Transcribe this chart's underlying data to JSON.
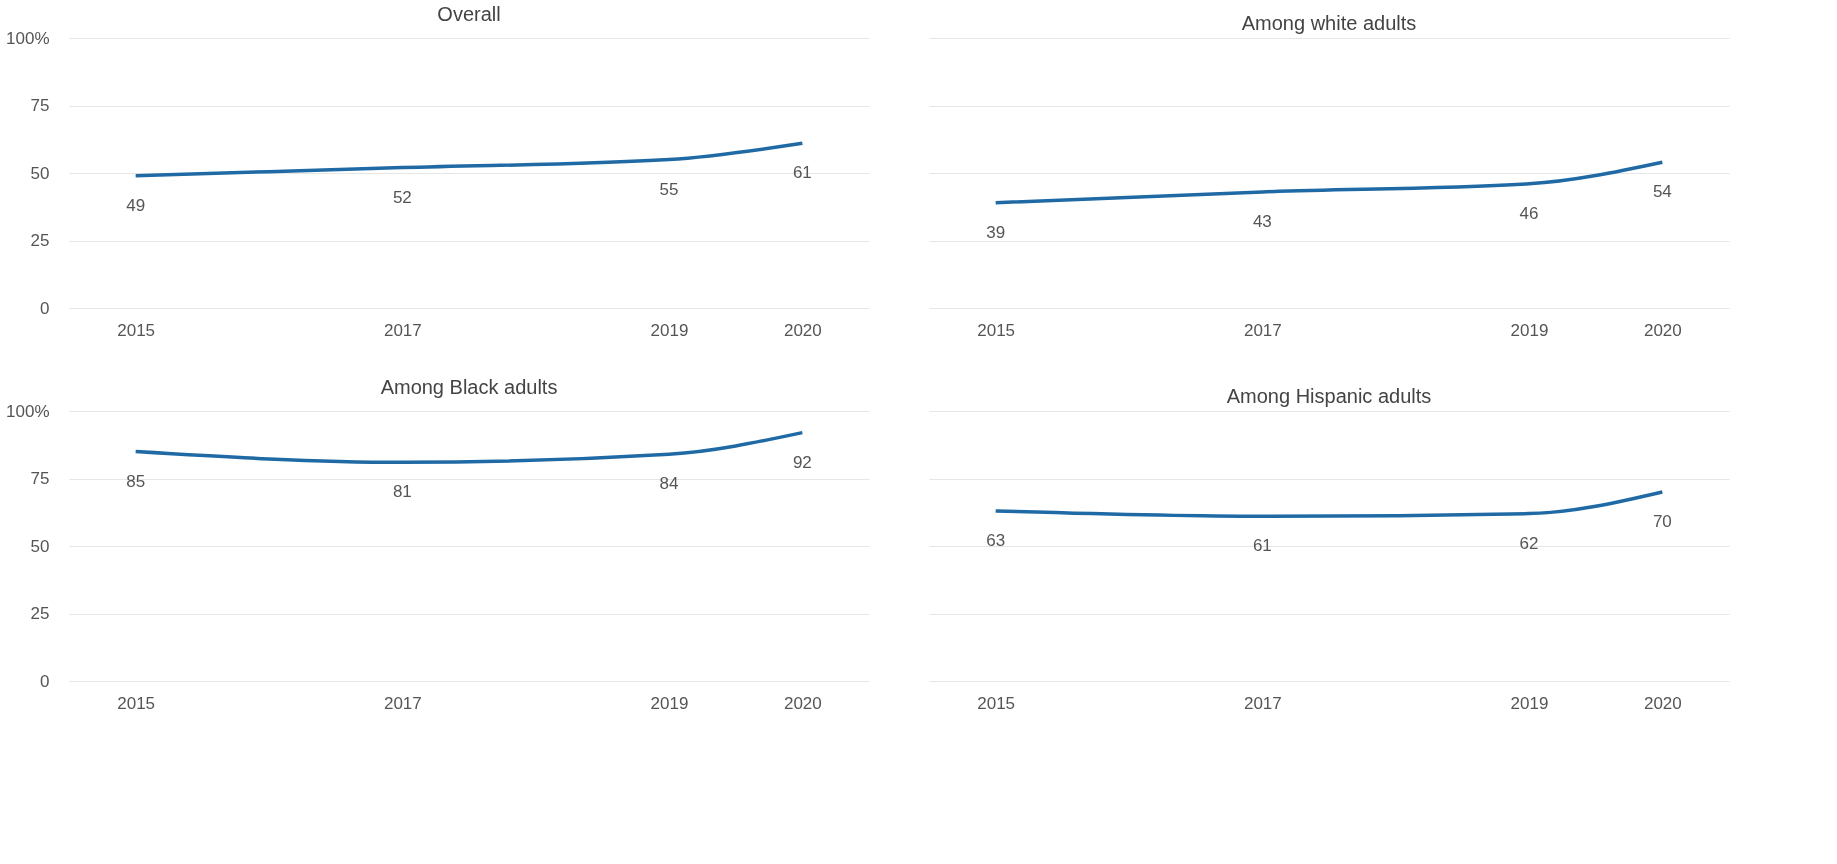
{
  "chart_data": [
    {
      "type": "line",
      "title": "Overall",
      "x": [
        2015,
        2017,
        2019,
        2020
      ],
      "values": [
        49,
        52,
        55,
        61
      ],
      "color": "#1f6aa5",
      "data_labels": true,
      "xlim": [
        2014.5,
        2020.5
      ],
      "xticks": [
        2015,
        2017,
        2019,
        2020
      ],
      "ylim": [
        0,
        100
      ],
      "yticks": [
        0,
        25,
        50,
        75,
        {
          "value": 100,
          "label": "100%"
        }
      ],
      "grid": "y"
    },
    {
      "type": "line",
      "title": "Among white adults",
      "x": [
        2015,
        2017,
        2019,
        2020
      ],
      "values": [
        39,
        43,
        46,
        54
      ],
      "color": "#1f6aa5",
      "data_labels": true,
      "xlim": [
        2014.5,
        2020.5
      ],
      "xticks": [
        2015,
        2017,
        2019,
        2020
      ],
      "ylim": [
        0,
        100
      ],
      "yticks": [
        0,
        25,
        50,
        75,
        100
      ],
      "grid": "y",
      "tick_labels": "x"
    },
    {
      "type": "line",
      "title": "Among Black adults",
      "x": [
        2015,
        2017,
        2019,
        2020
      ],
      "values": [
        85,
        81,
        84,
        92
      ],
      "color": "#1f6aa5",
      "data_labels": true,
      "xlim": [
        2014.5,
        2020.5
      ],
      "xticks": [
        2015,
        2017,
        2019,
        2020
      ],
      "ylim": [
        0,
        100
      ],
      "yticks": [
        0,
        25,
        50,
        75,
        {
          "value": 100,
          "label": "100%"
        }
      ],
      "grid": "y"
    },
    {
      "type": "line",
      "title": "Among Hispanic adults",
      "x": [
        2015,
        2017,
        2019,
        2020
      ],
      "values": [
        63,
        61,
        62,
        70
      ],
      "color": "#1f6aa5",
      "data_labels": true,
      "xlim": [
        2014.5,
        2020.5
      ],
      "xticks": [
        2015,
        2017,
        2019,
        2020
      ],
      "ylim": [
        0,
        100
      ],
      "yticks": [
        0,
        25,
        50,
        75,
        100
      ],
      "grid": "y",
      "tick_labels": "x"
    }
  ]
}
